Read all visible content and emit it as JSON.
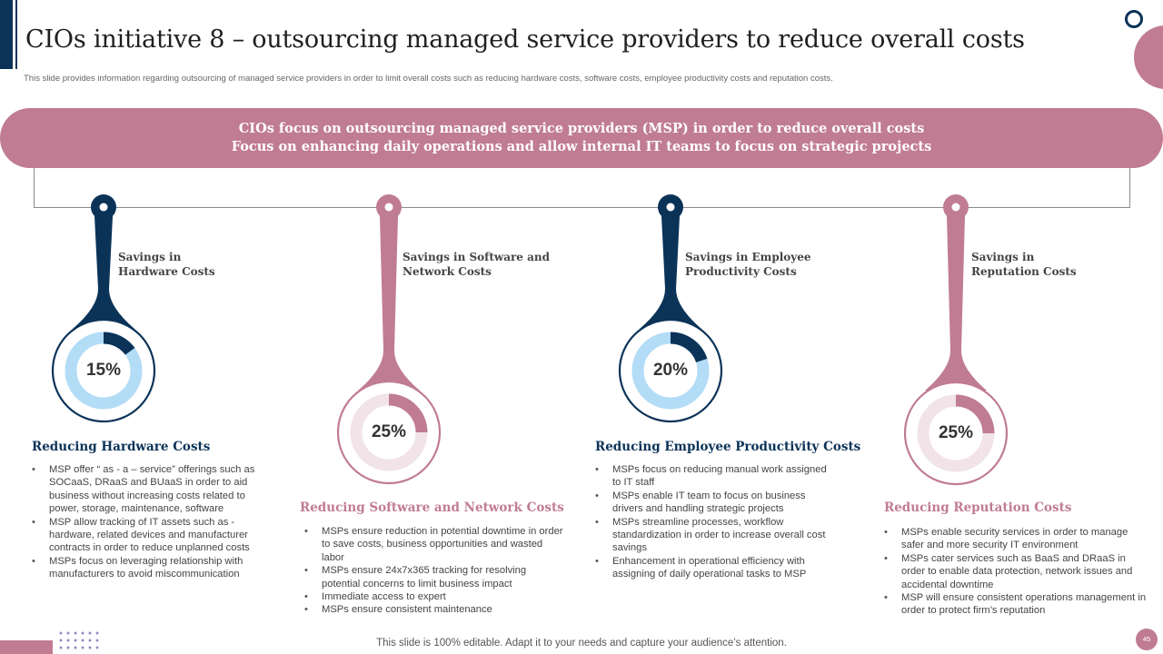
{
  "header": {
    "title": "CIOs initiative 8 – outsourcing managed service providers to reduce overall costs",
    "subtitle": "This slide provides information regarding outsourcing of managed service providers in order to limit  overall costs such as reducing hardware costs, software costs, employee productivity costs and reputation costs."
  },
  "banner": {
    "line1": "CIOs focus on outsourcing managed service providers (MSP) in order to reduce overall costs",
    "line2": "Focus on enhancing daily operations and allow internal IT teams to focus on strategic  projects"
  },
  "colors": {
    "navy": "#0b3358",
    "pink": "#c07c93",
    "light_blue": "#b3dcf7",
    "light_pink": "#f1e3e8"
  },
  "items": [
    {
      "label_line1": "Savings in",
      "label_line2": "Hardware Costs",
      "percent": "15%",
      "percent_value": 15,
      "title": "Reducing Hardware Costs",
      "bullets": [
        "MSP offer “ as - a – service” offerings such as SOCaaS, DRaaS and BUaaS in order to aid business without increasing costs related to power, storage, maintenance, software",
        "MSP allow tracking of IT assets such as - hardware, related devices and manufacturer contracts in order to reduce unplanned costs",
        "MSPs focus on leveraging relationship with manufacturers to avoid miscommunication"
      ]
    },
    {
      "label_line1": "Savings in Software and",
      "label_line2": "Network Costs",
      "percent": "25%",
      "percent_value": 25,
      "title": "Reducing Software and Network Costs",
      "bullets": [
        "MSPs ensure reduction in potential downtime in order to save costs, business opportunities and wasted labor",
        "MSPs ensure 24x7x365 tracking for resolving potential concerns to limit business impact",
        "Immediate access to expert",
        "MSPs ensure consistent maintenance"
      ]
    },
    {
      "label_line1": "Savings in Employee",
      "label_line2": "Productivity Costs",
      "percent": "20%",
      "percent_value": 20,
      "title": "Reducing Employee Productivity Costs",
      "bullets": [
        "MSPs focus on reducing manual work assigned to IT staff",
        "MSPs enable IT team to focus on business drivers and handling strategic projects",
        "MSPs streamline processes, workflow standardization in order to increase overall cost savings",
        "Enhancement in operational efficiency with assigning of daily operational tasks to MSP"
      ]
    },
    {
      "label_line1": "Savings in",
      "label_line2": "Reputation Costs",
      "percent": "25%",
      "percent_value": 25,
      "title": "Reducing Reputation Costs",
      "bullets": [
        "MSPs enable security services in order to manage safer and more security IT environment",
        "MSPs cater services such as BaaS and DRaaS in order to enable data protection, network issues and accidental downtime",
        "MSP will ensure consistent operations management in order to protect firm’s reputation"
      ]
    }
  ],
  "footer": {
    "note": "This slide is 100% editable. Adapt it to your needs and capture your audience’s attention.",
    "page_number": "45"
  }
}
